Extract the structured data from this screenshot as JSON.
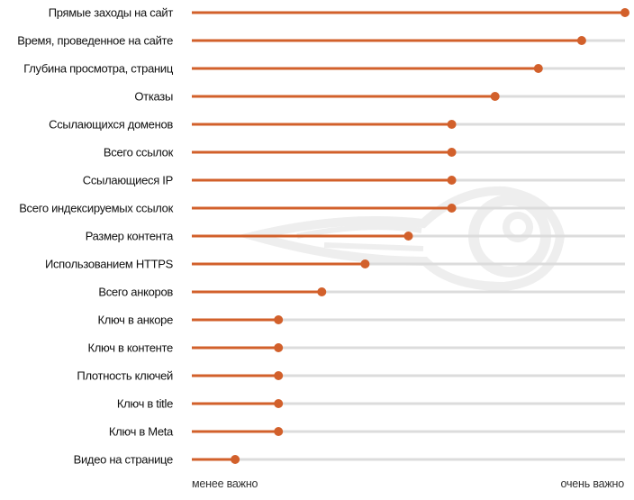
{
  "chart_data": {
    "type": "lollipop",
    "title": "",
    "xlabel": "",
    "ylabel": "",
    "axis": {
      "min_label": "менее важно",
      "max_label": "очень важно"
    },
    "xlim": [
      0,
      100
    ],
    "categories": [
      "Прямые заходы на сайт",
      "Время, проведенное на сайте",
      "Глубина просмотра, страниц",
      "Отказы",
      "Ссылающихся доменов",
      "Всего ссылок",
      "Ссылающиеся IP",
      "Всего индексируемых ссылок",
      "Размер контента",
      "Использованием HTTPS",
      "Всего анкоров",
      "Ключ в анкоре",
      "Ключ в контенте",
      "Плотность ключей",
      "Ключ в title",
      "Ключ в Meta",
      "Видео на странице"
    ],
    "values": [
      100,
      90,
      80,
      70,
      60,
      60,
      60,
      60,
      50,
      40,
      30,
      20,
      20,
      20,
      20,
      20,
      10
    ],
    "colors": {
      "accent": "#d2602b",
      "track": "#dcdcdc",
      "label": "#111111",
      "watermark": "#eeeeee"
    },
    "watermark_icon": "semrush-fireball-icon",
    "grid": false,
    "legend": "none"
  }
}
